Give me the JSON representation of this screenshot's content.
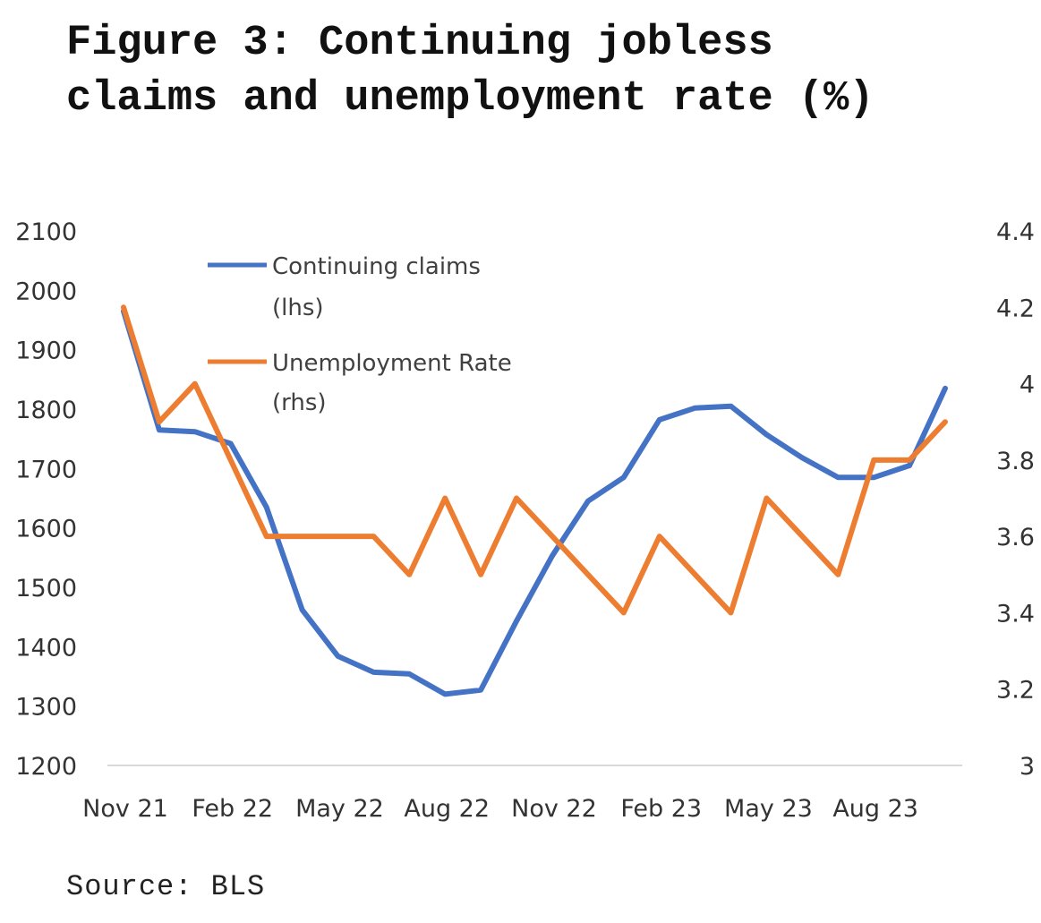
{
  "title": "Figure 3: Continuing jobless claims and unemployment rate (%)",
  "source": "Source: BLS",
  "colors": {
    "claims": "#4472C4",
    "unemployment": "#ED7D31",
    "axis": "#d9d9d9"
  },
  "chart_data": {
    "type": "line",
    "title": "Figure 3: Continuing jobless claims and unemployment rate (%)",
    "x": [
      "Nov 21",
      "Dec 21",
      "Jan 22",
      "Feb 22",
      "Mar 22",
      "Apr 22",
      "May 22",
      "Jun 22",
      "Jul 22",
      "Aug 22",
      "Sep 22",
      "Oct 22",
      "Nov 22",
      "Dec 22",
      "Jan 23",
      "Feb 23",
      "Mar 23",
      "Apr 23",
      "May 23",
      "Jun 23",
      "Jul 23",
      "Aug 23",
      "Sep 23",
      "Oct 23"
    ],
    "x_tick_labels": [
      "Nov 21",
      "Feb 22",
      "May 22",
      "Aug 22",
      "Nov 22",
      "Feb 23",
      "May 23",
      "Aug 23"
    ],
    "x_tick_indices": [
      0,
      3,
      6,
      9,
      12,
      15,
      18,
      21
    ],
    "y_left": {
      "ylim": [
        1200,
        2100
      ],
      "ticks": [
        "1200",
        "1300",
        "1400",
        "1500",
        "1600",
        "1700",
        "1800",
        "1900",
        "2000",
        "2100"
      ]
    },
    "y_right": {
      "ylim": [
        3,
        4.4
      ],
      "ticks": [
        "3",
        "3.2",
        "3.4",
        "3.6",
        "3.8",
        "4",
        "4.2",
        "4.4"
      ]
    },
    "grid": false,
    "legend_position": "top-left",
    "series": [
      {
        "name": "Continuing claims",
        "name_line2": "(lhs)",
        "axis": "left",
        "values": [
          1965,
          1765,
          1762,
          1742,
          1635,
          1462,
          1384,
          1357,
          1354,
          1320,
          1327,
          1443,
          1553,
          1645,
          1685,
          1782,
          1802,
          1805,
          1757,
          1718,
          1685,
          1685,
          1705,
          1835
        ]
      },
      {
        "name": "Unemployment Rate",
        "name_line2": "(rhs)",
        "axis": "right",
        "values": [
          4.2,
          3.9,
          4.0,
          3.8,
          3.6,
          3.6,
          3.6,
          3.6,
          3.5,
          3.7,
          3.5,
          3.7,
          3.6,
          3.5,
          3.4,
          3.6,
          3.5,
          3.4,
          3.7,
          3.6,
          3.5,
          3.8,
          3.8,
          3.9
        ]
      }
    ]
  }
}
